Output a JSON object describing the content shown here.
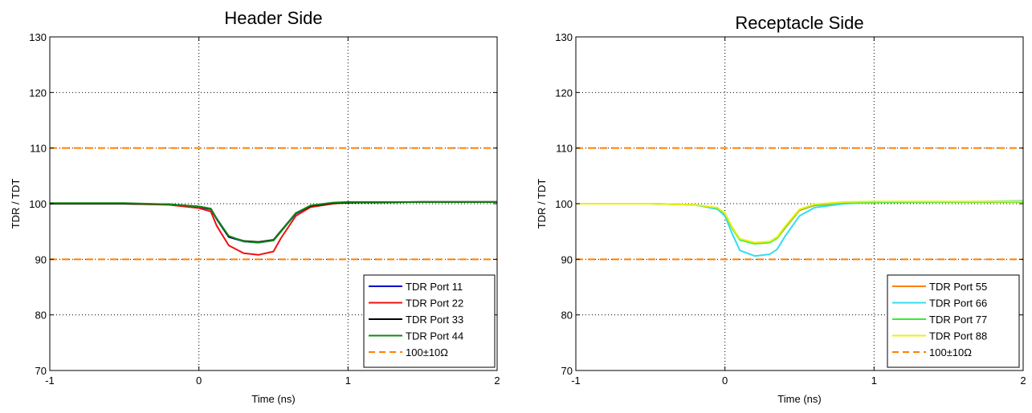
{
  "chart_data": [
    {
      "type": "line",
      "title": "Header Side",
      "xlabel": "Time (ns)",
      "ylabel": "TDR / TDT",
      "xlim": [
        -1,
        2
      ],
      "ylim": [
        70,
        130
      ],
      "xticks": [
        "-1",
        "0",
        "1",
        "2"
      ],
      "yticks": [
        "70",
        "80",
        "90",
        "100",
        "110",
        "120",
        "130"
      ],
      "grid": true,
      "legend_position": "bottom-right",
      "colors": {
        "blue": "#0000cc",
        "red": "#ee1111",
        "black": "#000000",
        "green": "#118811",
        "orange": "#ff8000"
      },
      "series": [
        {
          "name": "TDR Port 11",
          "color": "#0000cc",
          "style": "solid",
          "x": [
            -1,
            -0.5,
            -0.2,
            0,
            0.08,
            0.12,
            0.2,
            0.3,
            0.4,
            0.5,
            0.55,
            0.65,
            0.75,
            0.9,
            1.0,
            1.5,
            2.0
          ],
          "y": [
            100,
            100,
            99.9,
            99.4,
            99.0,
            97.2,
            94.0,
            93.2,
            93.0,
            93.4,
            95.0,
            98.2,
            99.6,
            100.1,
            100.2,
            100.3,
            100.3
          ]
        },
        {
          "name": "TDR Port 22",
          "color": "#ee1111",
          "style": "solid",
          "x": [
            -1,
            -0.5,
            -0.2,
            0,
            0.08,
            0.12,
            0.2,
            0.3,
            0.4,
            0.5,
            0.55,
            0.65,
            0.75,
            0.9,
            1.0,
            1.5,
            2.0
          ],
          "y": [
            100,
            100,
            99.8,
            99.2,
            98.6,
            96.0,
            92.5,
            91.1,
            90.8,
            91.4,
            93.8,
            97.8,
            99.4,
            100.0,
            100.2,
            100.3,
            100.3
          ]
        },
        {
          "name": "TDR Port 33",
          "color": "#000000",
          "style": "solid",
          "x": [
            -1,
            -0.5,
            -0.2,
            0,
            0.08,
            0.12,
            0.2,
            0.3,
            0.4,
            0.5,
            0.55,
            0.65,
            0.75,
            0.9,
            1.0,
            1.5,
            2.0
          ],
          "y": [
            100,
            100,
            99.9,
            99.5,
            99.1,
            97.3,
            94.1,
            93.3,
            93.1,
            93.5,
            95.1,
            98.3,
            99.6,
            100.1,
            100.2,
            100.3,
            100.3
          ]
        },
        {
          "name": "TDR Port 44",
          "color": "#118811",
          "style": "solid",
          "x": [
            -1,
            -0.5,
            -0.2,
            0,
            0.08,
            0.12,
            0.2,
            0.3,
            0.4,
            0.5,
            0.55,
            0.65,
            0.75,
            0.9,
            1.0,
            1.5,
            2.0
          ],
          "y": [
            100.1,
            100.1,
            99.9,
            99.5,
            99.1,
            97.3,
            94.2,
            93.2,
            93.0,
            93.4,
            95.0,
            98.3,
            99.7,
            100.2,
            100.3,
            100.3,
            100.3
          ]
        },
        {
          "name": "100±10Ω",
          "color": "#ff8000",
          "style": "dashed",
          "levels": [
            90,
            110
          ]
        }
      ]
    },
    {
      "type": "line",
      "title": "Receptacle Side",
      "xlabel": "Time (ns)",
      "ylabel": "TDR / TDT",
      "xlim": [
        -1,
        2
      ],
      "ylim": [
        70,
        130
      ],
      "xticks": [
        "-1",
        "0",
        "1",
        "2"
      ],
      "yticks": [
        "70",
        "80",
        "90",
        "100",
        "110",
        "120",
        "130"
      ],
      "grid": true,
      "legend_position": "bottom-right",
      "colors": {
        "orange": "#ff8000",
        "cyan": "#33ddee",
        "lime": "#33ee33",
        "yellow": "#eeee11"
      },
      "series": [
        {
          "name": "TDR Port 55",
          "color": "#ff8000",
          "style": "solid",
          "x": [
            -1,
            -0.5,
            -0.2,
            -0.05,
            0.0,
            0.05,
            0.1,
            0.2,
            0.3,
            0.35,
            0.4,
            0.5,
            0.6,
            0.8,
            1.0,
            1.5,
            2.0
          ],
          "y": [
            100,
            100,
            99.8,
            99.2,
            98.2,
            95.5,
            93.6,
            92.9,
            93.1,
            93.8,
            95.5,
            98.8,
            99.7,
            100.1,
            100.2,
            100.3,
            100.3
          ]
        },
        {
          "name": "TDR Port 66",
          "color": "#33ddee",
          "style": "solid",
          "x": [
            -1,
            -0.5,
            -0.2,
            -0.05,
            0.0,
            0.05,
            0.1,
            0.2,
            0.3,
            0.35,
            0.4,
            0.5,
            0.6,
            0.8,
            1.0,
            1.5,
            2.0
          ],
          "y": [
            100,
            100,
            99.8,
            99.0,
            97.8,
            94.5,
            91.6,
            90.6,
            90.9,
            91.8,
            94.0,
            97.8,
            99.3,
            100.0,
            100.2,
            100.3,
            100.5
          ]
        },
        {
          "name": "TDR Port 77",
          "color": "#33ee33",
          "style": "solid",
          "x": [
            -1,
            -0.5,
            -0.2,
            -0.05,
            0.0,
            0.05,
            0.1,
            0.2,
            0.3,
            0.35,
            0.4,
            0.5,
            0.6,
            0.8,
            1.0,
            1.5,
            2.0
          ],
          "y": [
            100,
            100,
            99.8,
            99.2,
            98.2,
            95.5,
            93.5,
            92.8,
            93.0,
            93.8,
            95.6,
            98.9,
            99.8,
            100.2,
            100.3,
            100.3,
            100.3
          ]
        },
        {
          "name": "TDR Port 88",
          "color": "#eeee11",
          "style": "solid",
          "x": [
            -1,
            -0.5,
            -0.2,
            -0.05,
            0.0,
            0.05,
            0.1,
            0.2,
            0.3,
            0.35,
            0.4,
            0.5,
            0.6,
            0.8,
            1.0,
            1.5,
            2.0
          ],
          "y": [
            100,
            100,
            99.8,
            99.3,
            98.3,
            95.7,
            93.7,
            93.0,
            93.2,
            94.0,
            95.8,
            99.0,
            99.9,
            100.3,
            100.4,
            100.4,
            100.4
          ]
        },
        {
          "name": "100±10Ω",
          "color": "#ff8000",
          "style": "dashed",
          "levels": [
            90,
            110
          ]
        }
      ]
    }
  ]
}
